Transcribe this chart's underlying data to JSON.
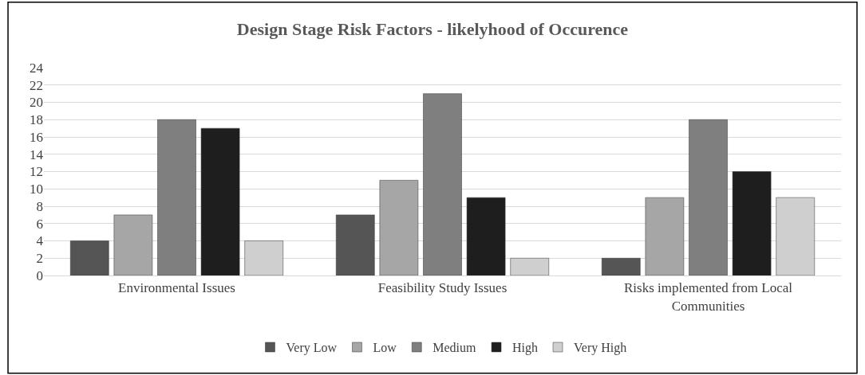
{
  "chart_data": {
    "type": "bar",
    "title": "Design Stage Risk Factors - likelyhood of Occurence",
    "categories": [
      "Environmental Issues",
      "Feasibility Study Issues",
      "Risks implemented from Local Communities"
    ],
    "series": [
      {
        "name": "Very Low",
        "color": "#555555",
        "values": [
          4,
          7,
          2
        ]
      },
      {
        "name": "Low",
        "color": "#a6a6a6",
        "values": [
          7,
          11,
          9
        ]
      },
      {
        "name": "Medium",
        "color": "#7f7f7f",
        "values": [
          18,
          21,
          18
        ]
      },
      {
        "name": "High",
        "color": "#1e1e1e",
        "values": [
          17,
          9,
          12
        ]
      },
      {
        "name": "Very High",
        "color": "#cfcfcf",
        "values": [
          4,
          2,
          9
        ]
      }
    ],
    "ylim": [
      0,
      24
    ],
    "yticks": [
      0,
      2,
      4,
      6,
      8,
      10,
      12,
      14,
      16,
      18,
      20,
      22,
      24
    ],
    "grid": "y",
    "legend": "bottom"
  }
}
